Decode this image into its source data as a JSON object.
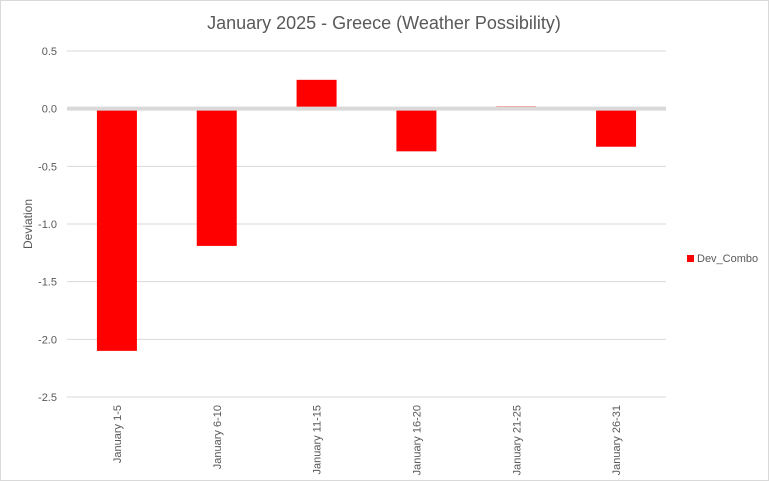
{
  "chart_data": {
    "type": "bar",
    "title": "January 2025 - Greece (Weather Possibility)",
    "xlabel": "",
    "ylabel": "Deviation",
    "categories": [
      "January 1-5",
      "January 6-10",
      "January 11-15",
      "January 16-20",
      "January 21-25",
      "January 26-31"
    ],
    "series": [
      {
        "name": "Dev_Combo",
        "color": "#ff0000",
        "values": [
          -2.1,
          -1.19,
          0.25,
          -0.37,
          0.02,
          -0.33
        ]
      }
    ],
    "ylim": [
      -2.5,
      0.5
    ],
    "yticks": [
      0.5,
      0.0,
      -0.5,
      -1.0,
      -1.5,
      -2.0,
      -2.5
    ],
    "ytick_labels": [
      "0.5",
      "0.0",
      "-0.5",
      "-1.0",
      "-1.5",
      "-2.0",
      "-2.5"
    ],
    "grid": true,
    "legend_position": "right",
    "colors": {
      "gridline": "#d9d9d9",
      "zero_line": "#d9d9d9",
      "text": "#595959"
    }
  }
}
